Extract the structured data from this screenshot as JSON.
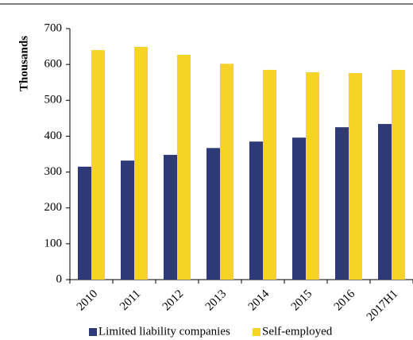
{
  "chart_data": {
    "type": "bar",
    "y_label": "Thousands",
    "categories": [
      "2010",
      "2011",
      "2012",
      "2013",
      "2014",
      "2015",
      "2016",
      "2017H1"
    ],
    "series": [
      {
        "name": "Limited liability companies",
        "color": "#2e3a78",
        "values": [
          315,
          332,
          348,
          367,
          385,
          396,
          425,
          434
        ]
      },
      {
        "name": "Self-employed",
        "color": "#f5d327",
        "values": [
          640,
          649,
          627,
          602,
          585,
          578,
          576,
          585
        ]
      }
    ],
    "ylim": [
      0,
      700
    ],
    "yticks": [
      0,
      100,
      200,
      300,
      400,
      500,
      600,
      700
    ],
    "grid": false,
    "legend": "bottom"
  }
}
